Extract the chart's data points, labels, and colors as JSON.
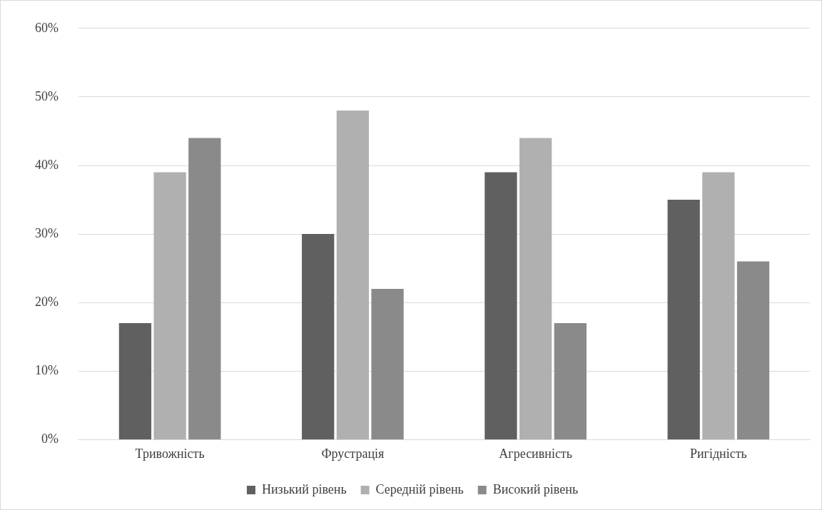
{
  "chart_data": {
    "type": "bar",
    "categories": [
      "Тривожність",
      "Фрустрація",
      "Агресивність",
      "Ригідність"
    ],
    "series": [
      {
        "name": "Низький рівень",
        "color": "#606060",
        "values": [
          17,
          30,
          39,
          35
        ]
      },
      {
        "name": "Середній рівень",
        "color": "#b0b0b0",
        "values": [
          39,
          48,
          44,
          39
        ]
      },
      {
        "name": "Високий рівень",
        "color": "#8a8a8a",
        "values": [
          44,
          22,
          17,
          26
        ]
      }
    ],
    "ylim": [
      0,
      60
    ],
    "yticks": [
      {
        "value": 0,
        "label": "0%"
      },
      {
        "value": 10,
        "label": "10%"
      },
      {
        "value": 20,
        "label": "20%"
      },
      {
        "value": 30,
        "label": "30%"
      },
      {
        "value": 40,
        "label": "40%"
      },
      {
        "value": 50,
        "label": "50%"
      },
      {
        "value": 60,
        "label": "60%"
      }
    ],
    "grid": "y",
    "legend": "bottom"
  }
}
